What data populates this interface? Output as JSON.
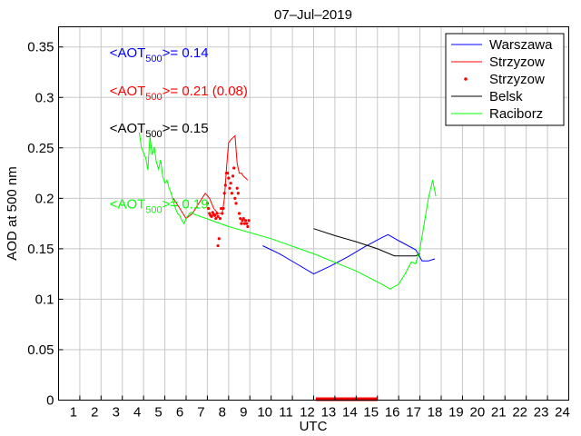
{
  "chart_data": {
    "type": "line",
    "title": "07–Jul–2019",
    "xlabel": "UTC",
    "ylabel": "AOD at 500 nm",
    "xlim": [
      0,
      24
    ],
    "ylim": [
      0,
      0.37
    ],
    "xticks": [
      1,
      2,
      3,
      4,
      5,
      6,
      7,
      8,
      9,
      10,
      11,
      12,
      13,
      14,
      15,
      16,
      17,
      18,
      19,
      20,
      21,
      22,
      23,
      24
    ],
    "yticks": [
      0,
      0.05,
      0.1,
      0.15,
      0.2,
      0.25,
      0.3,
      0.35
    ],
    "ytick_labels": [
      "0",
      "0.05",
      "0.1",
      "0.15",
      "0.2",
      "0.25",
      "0.3",
      "0.35"
    ],
    "grid": true,
    "legend_position": "top-right",
    "series": [
      {
        "name": "Warszawa",
        "color": "#0000ff",
        "style": "line",
        "x": [
          9.6,
          10.4,
          11.2,
          12.0,
          12.8,
          13.6,
          14.4,
          15.2,
          15.5,
          16.0,
          16.8,
          17.1,
          17.4,
          17.7
        ],
        "y": [
          0.153,
          0.145,
          0.135,
          0.125,
          0.133,
          0.142,
          0.152,
          0.161,
          0.164,
          0.158,
          0.149,
          0.138,
          0.138,
          0.14
        ]
      },
      {
        "name": "Strzyzow",
        "color": "#ff0000",
        "style": "line",
        "x": [
          5.4,
          5.7,
          6.0,
          6.3,
          6.6,
          6.9,
          7.1,
          7.3,
          7.5,
          7.7,
          7.8,
          7.9,
          8.0,
          8.1,
          8.2,
          8.3,
          8.4,
          8.5,
          8.6,
          8.7,
          8.8,
          8.9
        ],
        "y": [
          0.2,
          0.19,
          0.18,
          0.185,
          0.195,
          0.205,
          0.2,
          0.19,
          0.185,
          0.185,
          0.2,
          0.23,
          0.255,
          0.258,
          0.26,
          0.262,
          0.235,
          0.225,
          0.225,
          0.222,
          0.22,
          0.218
        ]
      },
      {
        "name": "Strzyzow",
        "color": "#ff0000",
        "style": "dots",
        "x": [
          7.0,
          7.05,
          7.1,
          7.15,
          7.2,
          7.25,
          7.3,
          7.35,
          7.4,
          7.45,
          7.5,
          7.5,
          7.55,
          7.6,
          7.65,
          7.7,
          7.75,
          7.8,
          7.85,
          7.9,
          7.95,
          8.0,
          8.05,
          8.1,
          8.15,
          8.2,
          8.25,
          8.3,
          8.35,
          8.4,
          8.45,
          8.5,
          8.55,
          8.6,
          8.65,
          8.7,
          8.75,
          8.8,
          8.85,
          8.9,
          8.95
        ],
        "y": [
          0.195,
          0.19,
          0.185,
          0.183,
          0.182,
          0.186,
          0.184,
          0.183,
          0.18,
          0.185,
          0.182,
          0.153,
          0.16,
          0.18,
          0.19,
          0.185,
          0.19,
          0.205,
          0.213,
          0.225,
          0.225,
          0.22,
          0.21,
          0.215,
          0.205,
          0.222,
          0.23,
          0.2,
          0.195,
          0.21,
          0.205,
          0.185,
          0.18,
          0.175,
          0.178,
          0.18,
          0.175,
          0.178,
          0.175,
          0.172,
          0.178
        ]
      },
      {
        "name": "Belsk",
        "color": "#000000",
        "style": "line",
        "x": [
          12.0,
          13.0,
          14.0,
          15.0,
          15.8,
          16.5,
          16.8,
          17.0
        ],
        "y": [
          0.17,
          0.163,
          0.157,
          0.15,
          0.143,
          0.143,
          0.143,
          0.145
        ]
      },
      {
        "name": "Raciborz",
        "color": "#00ff00",
        "style": "line",
        "x": [
          3.8,
          3.9,
          4.0,
          4.1,
          4.2,
          4.3,
          4.4,
          4.5,
          4.6,
          4.7,
          4.8,
          4.9,
          5.0,
          5.1,
          5.2,
          5.3,
          5.4,
          5.5,
          5.6,
          5.7,
          5.8,
          5.9,
          6.0,
          6.1,
          6.2,
          6.3,
          6.4,
          8.0,
          10.0,
          12.0,
          14.0,
          15.2,
          15.6,
          16.0,
          16.3,
          16.6,
          16.8,
          17.0,
          17.2,
          17.4,
          17.6,
          17.75
        ],
        "y": [
          0.265,
          0.25,
          0.245,
          0.24,
          0.228,
          0.262,
          0.243,
          0.251,
          0.236,
          0.229,
          0.238,
          0.222,
          0.215,
          0.218,
          0.21,
          0.205,
          0.197,
          0.19,
          0.185,
          0.183,
          0.178,
          0.175,
          0.18,
          0.183,
          0.186,
          0.186,
          0.184,
          0.172,
          0.16,
          0.145,
          0.128,
          0.115,
          0.11,
          0.115,
          0.125,
          0.137,
          0.135,
          0.15,
          0.175,
          0.2,
          0.218,
          0.202
        ]
      }
    ],
    "annotations": [
      {
        "color": "#0000ff",
        "prefix": "<AOT",
        "sub": "500",
        "suffix": ">= 0.14",
        "x": 2.4,
        "y": 0.34
      },
      {
        "color": "#ff0000",
        "prefix": "<AOT",
        "sub": "500",
        "suffix": ">= 0.21 (0.08)",
        "x": 2.4,
        "y": 0.302
      },
      {
        "color": "#000000",
        "prefix": "<AOT",
        "sub": "500",
        "suffix": ">= 0.15",
        "x": 2.4,
        "y": 0.265
      },
      {
        "color": "#00ff00",
        "prefix": "<AOT",
        "sub": "500",
        "suffix": ">= 0.19",
        "x": 2.4,
        "y": 0.19
      }
    ],
    "bars_on_axis": [
      {
        "color": "#ff0000",
        "x_start": 12.1,
        "x_end": 15.0,
        "y": 0
      }
    ]
  }
}
